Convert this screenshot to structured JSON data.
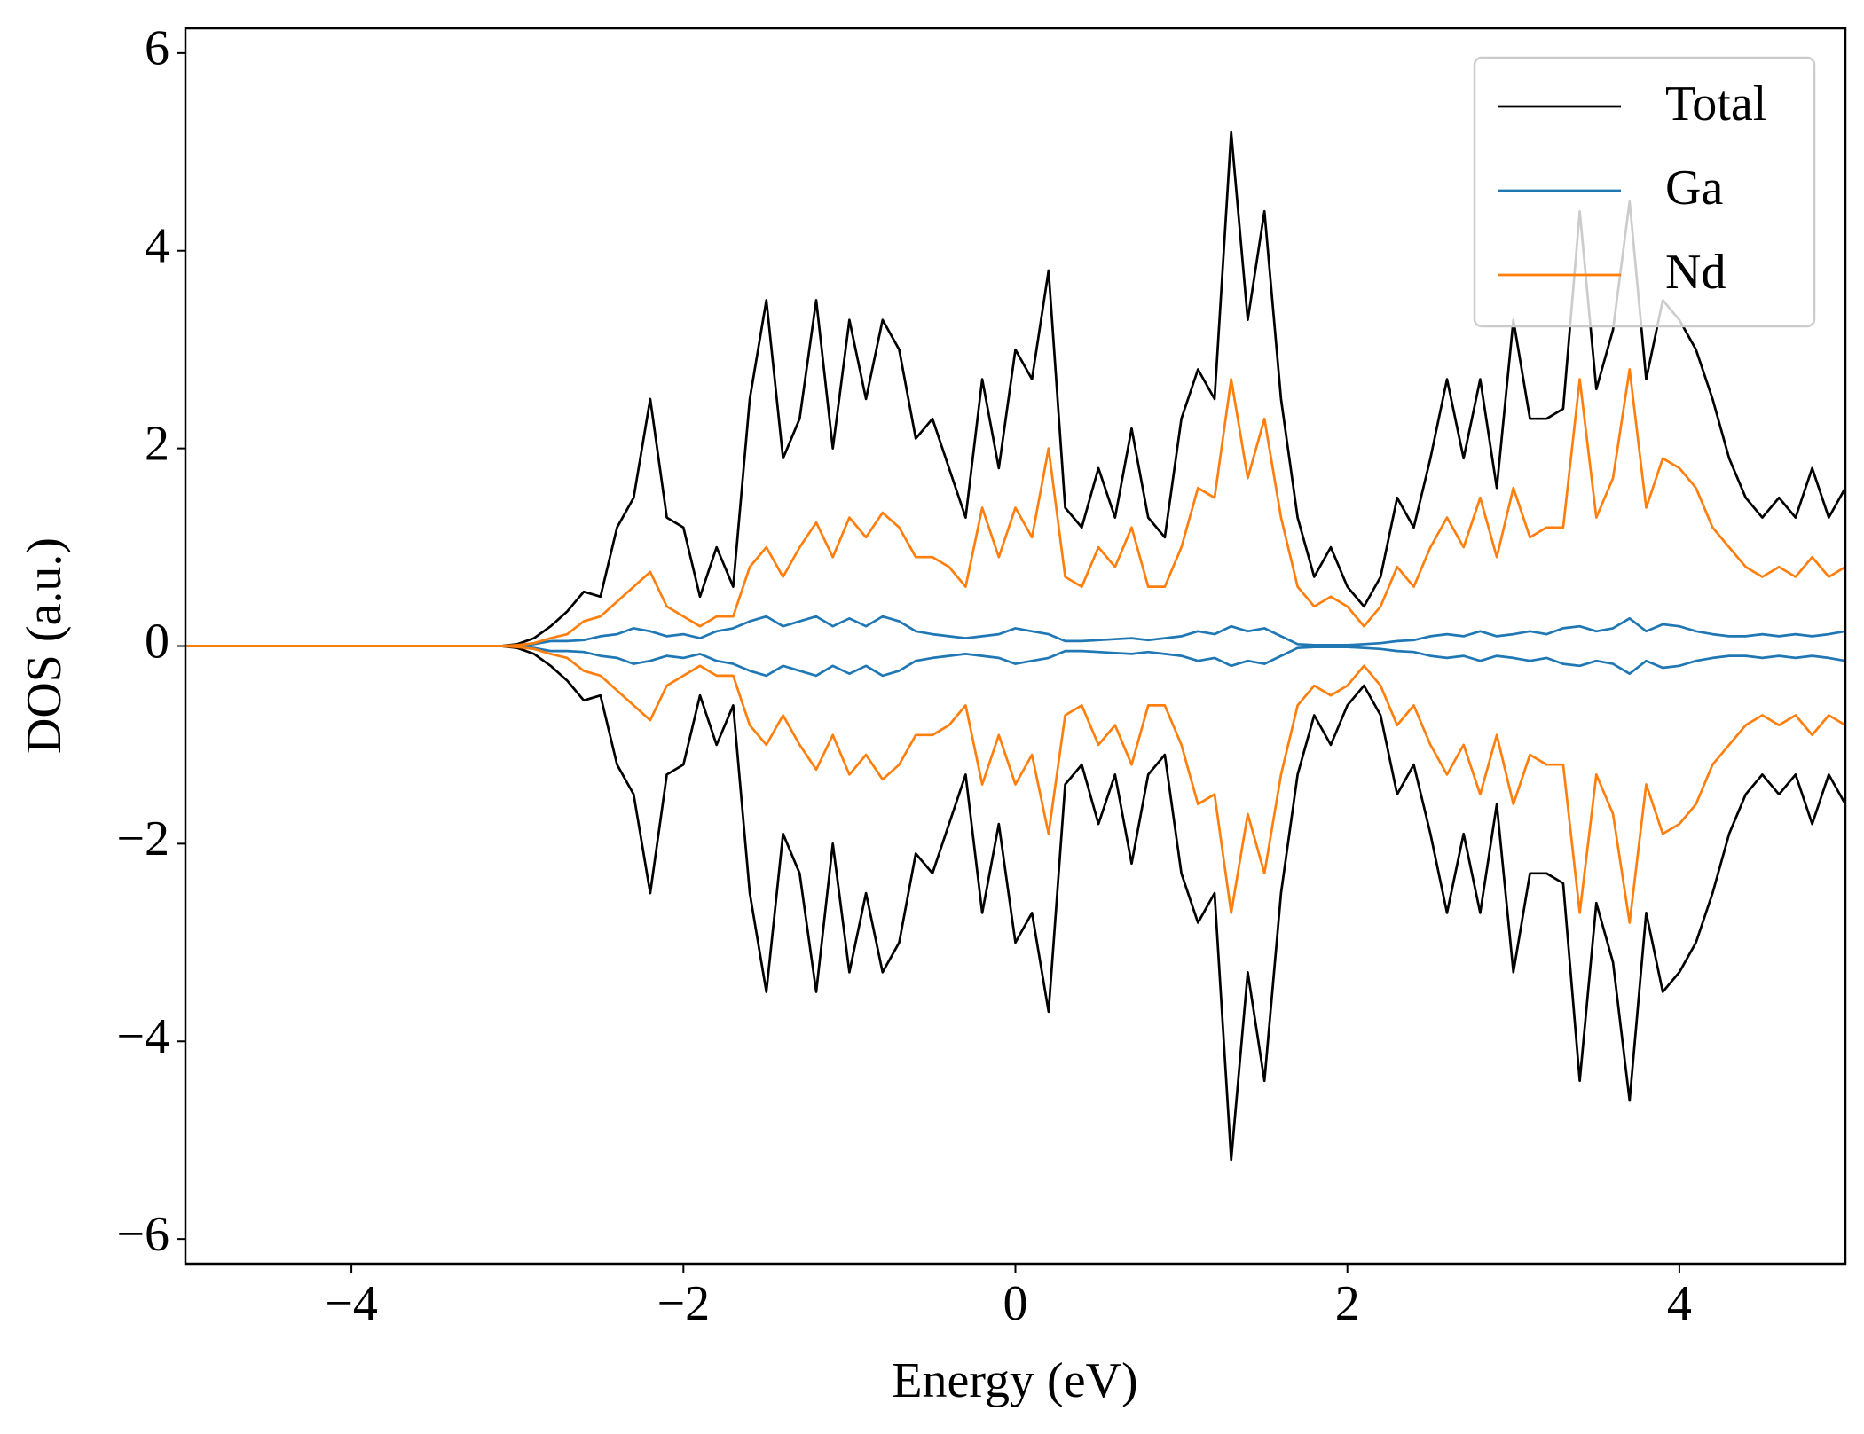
{
  "chart_data": {
    "type": "line",
    "xlabel": "Energy (eV)",
    "ylabel": "DOS (a.u.)",
    "xlim": [
      -5,
      5
    ],
    "ylim": [
      -6.25,
      6.25
    ],
    "xticks": [
      {
        "value": -4,
        "label": "−4"
      },
      {
        "value": -2,
        "label": "−2"
      },
      0,
      2,
      4
    ],
    "yticks": [
      {
        "value": -6,
        "label": "−6"
      },
      {
        "value": -4,
        "label": "−4"
      },
      {
        "value": -2,
        "label": "−2"
      },
      0,
      2,
      4,
      6
    ],
    "legend": "upper right",
    "x": [
      -5,
      -4.9,
      -4.8,
      -4.7,
      -4.6,
      -4.5,
      -4.4,
      -4.3,
      -4.2,
      -4.1,
      -4,
      -3.9,
      -3.8,
      -3.7,
      -3.6,
      -3.5,
      -3.4,
      -3.3,
      -3.2,
      -3.1,
      -3,
      -2.9,
      -2.8,
      -2.7,
      -2.6,
      -2.5,
      -2.4,
      -2.3,
      -2.2,
      -2.1,
      -2,
      -1.9,
      -1.8,
      -1.7,
      -1.6,
      -1.5,
      -1.4,
      -1.3,
      -1.2,
      -1.1,
      -1,
      -0.9,
      -0.8,
      -0.7,
      -0.6,
      -0.5,
      -0.4,
      -0.3,
      -0.2,
      -0.1,
      0,
      0.1,
      0.2,
      0.3,
      0.4,
      0.5,
      0.6,
      0.7,
      0.8,
      0.9,
      1,
      1.1,
      1.2,
      1.3,
      1.4,
      1.5,
      1.6,
      1.7,
      1.8,
      1.9,
      2,
      2.1,
      2.2,
      2.3,
      2.4,
      2.5,
      2.6,
      2.7,
      2.8,
      2.9,
      3,
      3.1,
      3.2,
      3.3,
      3.4,
      3.5,
      3.6,
      3.7,
      3.8,
      3.9,
      4,
      4.1,
      4.2,
      4.3,
      4.4,
      4.5,
      4.6,
      4.7,
      4.8,
      4.9,
      5
    ],
    "series": [
      {
        "name": "Total",
        "color": "#000000",
        "values": [
          0,
          0,
          0,
          0,
          0,
          0,
          0,
          0,
          0,
          0,
          0,
          0,
          0,
          0,
          0,
          0,
          0,
          0,
          0,
          0,
          0.02,
          0.08,
          0.2,
          0.35,
          0.55,
          0.5,
          1.2,
          1.5,
          2.5,
          1.3,
          1.2,
          0.5,
          1.0,
          0.6,
          2.5,
          3.5,
          1.9,
          2.3,
          3.5,
          2.0,
          3.3,
          2.5,
          3.3,
          3.0,
          2.1,
          2.3,
          1.8,
          1.3,
          2.7,
          1.8,
          3.0,
          2.7,
          3.8,
          1.4,
          1.2,
          1.8,
          1.3,
          2.2,
          1.3,
          1.1,
          2.3,
          2.8,
          2.5,
          5.2,
          3.3,
          4.4,
          2.5,
          1.3,
          0.7,
          1.0,
          0.6,
          0.4,
          0.7,
          1.5,
          1.2,
          1.9,
          2.7,
          1.9,
          2.7,
          1.6,
          3.3,
          2.3,
          2.3,
          2.4,
          4.4,
          2.6,
          3.2,
          4.5,
          2.7,
          3.5,
          3.3,
          3.0,
          2.5,
          1.9,
          1.5,
          1.3,
          1.5,
          1.3,
          1.8,
          1.3,
          1.6
        ],
        "values_down": [
          0,
          0,
          0,
          0,
          0,
          0,
          0,
          0,
          0,
          0,
          0,
          0,
          0,
          0,
          0,
          0,
          0,
          0,
          0,
          0,
          -0.02,
          -0.08,
          -0.2,
          -0.35,
          -0.55,
          -0.5,
          -1.2,
          -1.5,
          -2.5,
          -1.3,
          -1.2,
          -0.5,
          -1.0,
          -0.6,
          -2.5,
          -3.5,
          -1.9,
          -2.3,
          -3.5,
          -2.0,
          -3.3,
          -2.5,
          -3.3,
          -3.0,
          -2.1,
          -2.3,
          -1.8,
          -1.3,
          -2.7,
          -1.8,
          -3.0,
          -2.7,
          -3.7,
          -1.4,
          -1.2,
          -1.8,
          -1.3,
          -2.2,
          -1.3,
          -1.1,
          -2.3,
          -2.8,
          -2.5,
          -5.2,
          -3.3,
          -4.4,
          -2.5,
          -1.3,
          -0.7,
          -1.0,
          -0.6,
          -0.4,
          -0.7,
          -1.5,
          -1.2,
          -1.9,
          -2.7,
          -1.9,
          -2.7,
          -1.6,
          -3.3,
          -2.3,
          -2.3,
          -2.4,
          -4.4,
          -2.6,
          -3.2,
          -4.6,
          -2.7,
          -3.5,
          -3.3,
          -3.0,
          -2.5,
          -1.9,
          -1.5,
          -1.3,
          -1.5,
          -1.3,
          -1.8,
          -1.3,
          -1.6
        ]
      },
      {
        "name": "Ga",
        "color": "#1f77b4",
        "values": [
          0,
          0,
          0,
          0,
          0,
          0,
          0,
          0,
          0,
          0,
          0,
          0,
          0,
          0,
          0,
          0,
          0,
          0,
          0,
          0,
          0,
          0.02,
          0.05,
          0.05,
          0.06,
          0.1,
          0.12,
          0.18,
          0.15,
          0.1,
          0.12,
          0.08,
          0.15,
          0.18,
          0.25,
          0.3,
          0.2,
          0.25,
          0.3,
          0.2,
          0.28,
          0.2,
          0.3,
          0.25,
          0.15,
          0.12,
          0.1,
          0.08,
          0.1,
          0.12,
          0.18,
          0.15,
          0.12,
          0.05,
          0.05,
          0.06,
          0.07,
          0.08,
          0.06,
          0.08,
          0.1,
          0.15,
          0.12,
          0.2,
          0.15,
          0.18,
          0.1,
          0.02,
          0.01,
          0.01,
          0.01,
          0.02,
          0.03,
          0.05,
          0.06,
          0.1,
          0.12,
          0.1,
          0.15,
          0.1,
          0.12,
          0.15,
          0.12,
          0.18,
          0.2,
          0.15,
          0.18,
          0.28,
          0.15,
          0.22,
          0.2,
          0.15,
          0.12,
          0.1,
          0.1,
          0.12,
          0.1,
          0.12,
          0.1,
          0.12,
          0.15
        ],
        "values_down": [
          0,
          0,
          0,
          0,
          0,
          0,
          0,
          0,
          0,
          0,
          0,
          0,
          0,
          0,
          0,
          0,
          0,
          0,
          0,
          0,
          0,
          -0.02,
          -0.05,
          -0.05,
          -0.06,
          -0.1,
          -0.12,
          -0.18,
          -0.15,
          -0.1,
          -0.12,
          -0.08,
          -0.15,
          -0.18,
          -0.25,
          -0.3,
          -0.2,
          -0.25,
          -0.3,
          -0.2,
          -0.28,
          -0.2,
          -0.3,
          -0.25,
          -0.15,
          -0.12,
          -0.1,
          -0.08,
          -0.1,
          -0.12,
          -0.18,
          -0.15,
          -0.12,
          -0.05,
          -0.05,
          -0.06,
          -0.07,
          -0.08,
          -0.06,
          -0.08,
          -0.1,
          -0.15,
          -0.12,
          -0.2,
          -0.15,
          -0.18,
          -0.1,
          -0.02,
          -0.01,
          -0.01,
          -0.01,
          -0.02,
          -0.03,
          -0.05,
          -0.06,
          -0.1,
          -0.12,
          -0.1,
          -0.15,
          -0.1,
          -0.12,
          -0.15,
          -0.12,
          -0.18,
          -0.2,
          -0.15,
          -0.18,
          -0.28,
          -0.15,
          -0.22,
          -0.2,
          -0.15,
          -0.12,
          -0.1,
          -0.1,
          -0.12,
          -0.1,
          -0.12,
          -0.1,
          -0.12,
          -0.15
        ]
      },
      {
        "name": "Nd",
        "color": "#ff7f0e",
        "values": [
          0,
          0,
          0,
          0,
          0,
          0,
          0,
          0,
          0,
          0,
          0,
          0,
          0,
          0,
          0,
          0,
          0,
          0,
          0,
          0,
          0.01,
          0.03,
          0.08,
          0.12,
          0.25,
          0.3,
          0.45,
          0.6,
          0.75,
          0.4,
          0.3,
          0.2,
          0.3,
          0.3,
          0.8,
          1.0,
          0.7,
          1.0,
          1.25,
          0.9,
          1.3,
          1.1,
          1.35,
          1.2,
          0.9,
          0.9,
          0.8,
          0.6,
          1.4,
          0.9,
          1.4,
          1.1,
          2.0,
          0.7,
          0.6,
          1.0,
          0.8,
          1.2,
          0.6,
          0.6,
          1.0,
          1.6,
          1.5,
          2.7,
          1.7,
          2.3,
          1.3,
          0.6,
          0.4,
          0.5,
          0.4,
          0.2,
          0.4,
          0.8,
          0.6,
          1.0,
          1.3,
          1.0,
          1.5,
          0.9,
          1.6,
          1.1,
          1.2,
          1.2,
          2.7,
          1.3,
          1.7,
          2.8,
          1.4,
          1.9,
          1.8,
          1.6,
          1.2,
          1.0,
          0.8,
          0.7,
          0.8,
          0.7,
          0.9,
          0.7,
          0.8
        ],
        "values_down": [
          0,
          0,
          0,
          0,
          0,
          0,
          0,
          0,
          0,
          0,
          0,
          0,
          0,
          0,
          0,
          0,
          0,
          0,
          0,
          0,
          -0.01,
          -0.03,
          -0.08,
          -0.12,
          -0.25,
          -0.3,
          -0.45,
          -0.6,
          -0.75,
          -0.4,
          -0.3,
          -0.2,
          -0.3,
          -0.3,
          -0.8,
          -1.0,
          -0.7,
          -1.0,
          -1.25,
          -0.9,
          -1.3,
          -1.1,
          -1.35,
          -1.2,
          -0.9,
          -0.9,
          -0.8,
          -0.6,
          -1.4,
          -0.9,
          -1.4,
          -1.1,
          -1.9,
          -0.7,
          -0.6,
          -1.0,
          -0.8,
          -1.2,
          -0.6,
          -0.6,
          -1.0,
          -1.6,
          -1.5,
          -2.7,
          -1.7,
          -2.3,
          -1.3,
          -0.6,
          -0.4,
          -0.5,
          -0.4,
          -0.2,
          -0.4,
          -0.8,
          -0.6,
          -1.0,
          -1.3,
          -1.0,
          -1.5,
          -0.9,
          -1.6,
          -1.1,
          -1.2,
          -1.2,
          -2.7,
          -1.3,
          -1.7,
          -2.8,
          -1.4,
          -1.9,
          -1.8,
          -1.6,
          -1.2,
          -1.0,
          -0.8,
          -0.7,
          -0.8,
          -0.7,
          -0.9,
          -0.7,
          -0.8
        ]
      }
    ]
  }
}
